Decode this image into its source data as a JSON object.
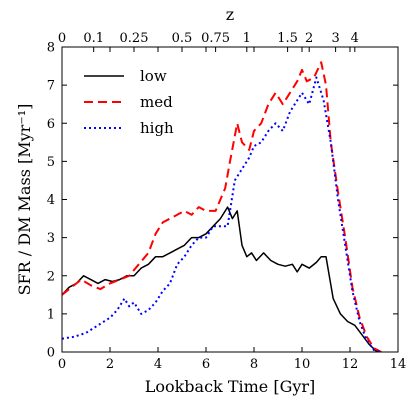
{
  "chart_data": {
    "type": "line",
    "title": "",
    "xlabel": "Lookback Time [Gyr]",
    "ylabel": "SFR / DM Mass [Myr⁻¹]",
    "xlim": [
      0,
      14
    ],
    "ylim": [
      0,
      8
    ],
    "x_ticks": [
      "0",
      "2",
      "4",
      "6",
      "8",
      "10",
      "12",
      "14"
    ],
    "y_ticks": [
      "0",
      "1",
      "2",
      "3",
      "4",
      "5",
      "6",
      "7",
      "8"
    ],
    "top_axis": {
      "label": "z",
      "ticks": [
        {
          "z": "0",
          "t": 0.0
        },
        {
          "z": "0.1",
          "t": 1.32
        },
        {
          "z": "0.25",
          "t": 3.0
        },
        {
          "z": "0.5",
          "t": 5.0
        },
        {
          "z": "0.75",
          "t": 6.4
        },
        {
          "z": "1",
          "t": 7.7
        },
        {
          "z": "1.5",
          "t": 9.4
        },
        {
          "z": "2",
          "t": 10.3
        },
        {
          "z": "3",
          "t": 11.4
        },
        {
          "z": "4",
          "t": 12.2
        }
      ]
    },
    "grid": false,
    "legend_position": "top-left",
    "series": [
      {
        "name": "low",
        "color": "#000000",
        "style": "solid",
        "x": [
          0,
          0.3,
          0.6,
          0.9,
          1.2,
          1.5,
          1.8,
          2.1,
          2.4,
          2.7,
          3.0,
          3.3,
          3.6,
          3.9,
          4.2,
          4.5,
          4.8,
          5.1,
          5.4,
          5.7,
          6.0,
          6.3,
          6.6,
          6.9,
          7.1,
          7.3,
          7.5,
          7.7,
          7.9,
          8.1,
          8.4,
          8.7,
          9.0,
          9.3,
          9.6,
          9.8,
          10.0,
          10.3,
          10.6,
          10.8,
          11.0,
          11.3,
          11.6,
          11.9,
          12.2,
          12.5,
          12.8,
          13.1,
          13.3
        ],
        "y": [
          1.5,
          1.7,
          1.8,
          2.0,
          1.9,
          1.8,
          1.9,
          1.85,
          1.9,
          2.0,
          2.0,
          2.2,
          2.3,
          2.5,
          2.5,
          2.6,
          2.7,
          2.8,
          3.0,
          3.0,
          3.1,
          3.3,
          3.5,
          3.8,
          3.5,
          3.7,
          2.8,
          2.5,
          2.6,
          2.4,
          2.6,
          2.4,
          2.3,
          2.25,
          2.3,
          2.1,
          2.3,
          2.2,
          2.35,
          2.5,
          2.5,
          1.4,
          1.0,
          0.8,
          0.7,
          0.45,
          0.2,
          0.02,
          0.0
        ]
      },
      {
        "name": "med",
        "color": "#ff0000",
        "style": "dashed",
        "x": [
          0,
          0.4,
          0.8,
          1.2,
          1.6,
          2.0,
          2.4,
          2.8,
          3.2,
          3.6,
          3.9,
          4.2,
          4.5,
          4.8,
          5.1,
          5.4,
          5.7,
          6.0,
          6.4,
          6.8,
          7.0,
          7.3,
          7.5,
          7.8,
          8.0,
          8.3,
          8.6,
          8.9,
          9.2,
          9.5,
          9.8,
          10.0,
          10.2,
          10.5,
          10.8,
          11.0,
          11.2,
          11.5,
          11.8,
          12.1,
          12.4,
          12.7,
          13.0,
          13.3
        ],
        "y": [
          1.5,
          1.7,
          1.9,
          1.75,
          1.65,
          1.8,
          1.9,
          2.0,
          2.3,
          2.6,
          3.1,
          3.4,
          3.5,
          3.6,
          3.7,
          3.6,
          3.8,
          3.7,
          3.7,
          4.3,
          5.0,
          6.0,
          5.5,
          5.3,
          5.8,
          6.0,
          6.5,
          6.8,
          6.5,
          6.8,
          7.1,
          7.4,
          7.1,
          7.2,
          7.6,
          7.0,
          5.5,
          4.2,
          3.0,
          1.7,
          0.9,
          0.4,
          0.1,
          0.0
        ]
      },
      {
        "name": "high",
        "color": "#0000ff",
        "style": "dotted",
        "x": [
          0,
          0.5,
          1.0,
          1.5,
          2.0,
          2.3,
          2.6,
          2.8,
          3.0,
          3.3,
          3.6,
          3.9,
          4.2,
          4.5,
          4.8,
          5.1,
          5.4,
          5.7,
          6.0,
          6.3,
          6.6,
          6.9,
          7.2,
          7.5,
          7.8,
          8.0,
          8.3,
          8.6,
          8.9,
          9.2,
          9.5,
          9.8,
          10.0,
          10.3,
          10.6,
          10.9,
          11.2,
          11.5,
          11.8,
          12.1,
          12.4,
          12.7,
          13.0,
          13.3
        ],
        "y": [
          0.35,
          0.4,
          0.5,
          0.7,
          0.9,
          1.1,
          1.4,
          1.2,
          1.3,
          1.0,
          1.1,
          1.3,
          1.6,
          1.8,
          2.3,
          2.5,
          2.8,
          3.0,
          3.0,
          3.3,
          3.3,
          3.3,
          4.5,
          4.8,
          5.1,
          5.4,
          5.5,
          5.8,
          6.0,
          5.8,
          6.3,
          6.6,
          6.8,
          6.5,
          7.2,
          6.6,
          5.5,
          4.0,
          2.8,
          1.6,
          0.8,
          0.3,
          0.05,
          0.0
        ]
      }
    ]
  }
}
